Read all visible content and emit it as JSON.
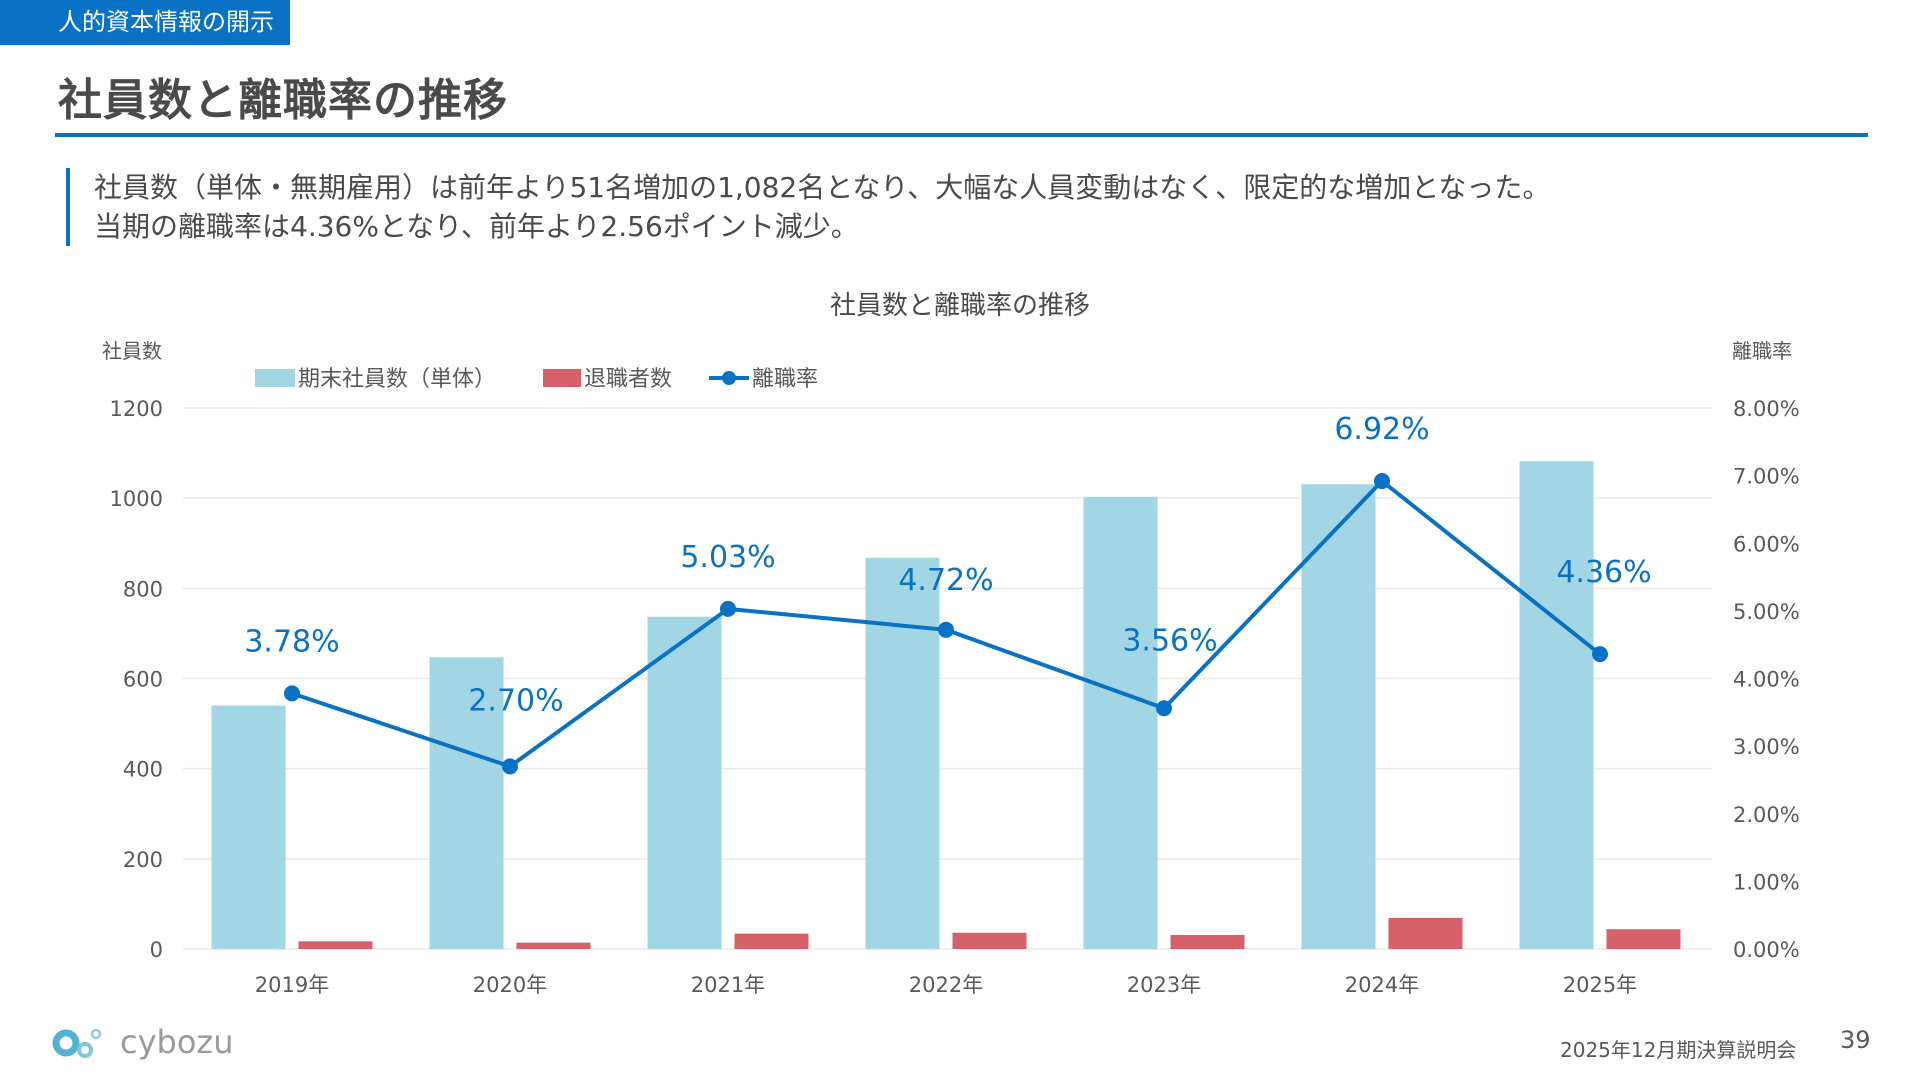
{
  "header": {
    "section_tag": "人的資本情報の開示",
    "title": "社員数と離職率の推移"
  },
  "summary": {
    "lines": [
      "社員数（単体・無期雇用）は前年より51名増加の1,082名となり、大幅な人員変動はなく、限定的な増加となった。",
      "当期の離職率は4.36%となり、前年より2.56ポイント減少。"
    ]
  },
  "colors": {
    "accent": "#0a72c4",
    "headcount_bar": "#a3d6e5",
    "retiree_bar": "#d5606a",
    "rate_line": "#0a72c4"
  },
  "chart_data": {
    "type": "bar",
    "title": "社員数と離職率の推移",
    "categories": [
      "2019年",
      "2020年",
      "2021年",
      "2022年",
      "2023年",
      "2024年",
      "2025年"
    ],
    "series": [
      {
        "name": "期末社員数（単体）",
        "type": "bar",
        "axis": "left",
        "values": [
          540,
          647,
          737,
          868,
          1003,
          1031,
          1082
        ]
      },
      {
        "name": "退職者数",
        "type": "bar",
        "axis": "left",
        "values": [
          17,
          14,
          34,
          36,
          31,
          69,
          44
        ]
      },
      {
        "name": "離職率",
        "type": "line",
        "axis": "right",
        "values": [
          3.78,
          2.7,
          5.03,
          4.72,
          3.56,
          6.92,
          4.36
        ],
        "data_labels": [
          "3.78%",
          "2.70%",
          "5.03%",
          "4.72%",
          "3.56%",
          "6.92%",
          "4.36%"
        ]
      }
    ],
    "ylabel": "社員数",
    "ylim": [
      0,
      1200
    ],
    "yticks": [
      "0",
      "200",
      "400",
      "600",
      "800",
      "1000",
      "1200"
    ],
    "y2label": "離職率",
    "y2lim": [
      0,
      8
    ],
    "y2ticks": [
      "0.00%",
      "1.00%",
      "2.00%",
      "3.00%",
      "4.00%",
      "5.00%",
      "6.00%",
      "7.00%",
      "8.00%"
    ],
    "grid": true,
    "legend": "top-left"
  },
  "footer": {
    "logo_text": "cybozu",
    "event": "2025年12月期決算説明会",
    "page_number": "39"
  }
}
